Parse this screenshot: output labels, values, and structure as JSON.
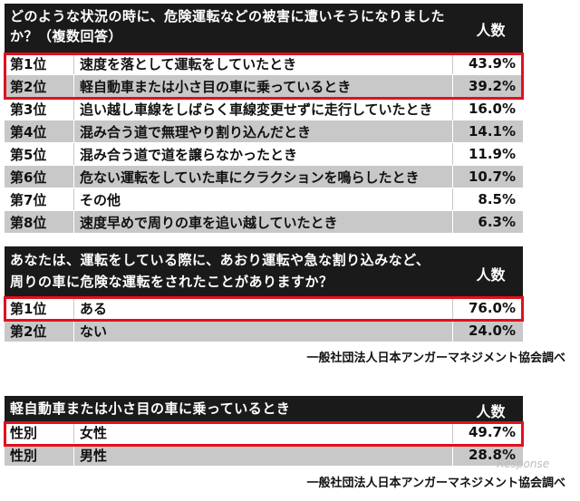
{
  "chart_data": [
    {
      "type": "table",
      "title": "どのような状況の時に、危険運転などの被害に遭いそうになりましたか？（複数回答）",
      "column_header": "人数",
      "rows": [
        {
          "rank": "第1位",
          "label": "速度を落として運転をしていたとき",
          "value": "43.9%"
        },
        {
          "rank": "第2位",
          "label": "軽自動車または小さ目の車に乗っているとき",
          "value": "39.2%"
        },
        {
          "rank": "第3位",
          "label": "追い越し車線をしばらく車線変更せずに走行していたとき",
          "value": "16.0%"
        },
        {
          "rank": "第4位",
          "label": "混み合う道で無理やり割り込んだとき",
          "value": "14.1%"
        },
        {
          "rank": "第5位",
          "label": "混み合う道で道を譲らなかったとき",
          "value": "11.9%"
        },
        {
          "rank": "第6位",
          "label": "危ない運転をしていた車にクラクションを鳴らしたとき",
          "value": "10.7%"
        },
        {
          "rank": "第7位",
          "label": "その他",
          "value": "8.5%"
        },
        {
          "rank": "第8位",
          "label": "速度早めで周りの車を追い越していたとき",
          "value": "6.3%"
        }
      ]
    },
    {
      "type": "table",
      "title_line1": "あなたは、運転をしている際に、あおり運転や急な割り込みなど、",
      "title_line2": "周りの車に危険な運転をされたことがありますか？",
      "column_header": "人数",
      "rows": [
        {
          "rank": "第1位",
          "label": "ある",
          "value": "76.0%"
        },
        {
          "rank": "第2位",
          "label": "ない",
          "value": "24.0%"
        }
      ],
      "source": "一般社団法人日本アンガーマネジメント協会調べ"
    },
    {
      "type": "table",
      "title": "軽自動車または小さ目の車に乗っているとき",
      "column_header": "人数",
      "rows": [
        {
          "rank": "性別",
          "label": "女性",
          "value": "49.7%"
        },
        {
          "rank": "性別",
          "label": "男性",
          "value": "28.8%"
        }
      ],
      "source": "一般社団法人日本アンガーマネジメント協会調べ"
    }
  ],
  "watermark": "Response"
}
